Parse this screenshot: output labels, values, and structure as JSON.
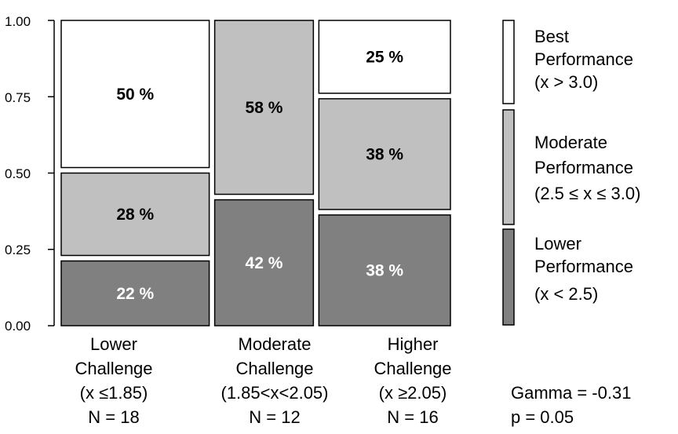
{
  "chart_data": {
    "type": "mosaic",
    "ylim": [
      0,
      1
    ],
    "y_ticks": [
      "0.00",
      "0.25",
      "0.50",
      "0.75",
      "1.00"
    ],
    "categories": [
      {
        "lines": [
          "Lower",
          "Challenge",
          "(x ≤1.85)",
          "N = 18"
        ],
        "n": 18,
        "segments": [
          {
            "level": "lower",
            "value": 0.22,
            "label": "22 %"
          },
          {
            "level": "moderate",
            "value": 0.28,
            "label": "28 %"
          },
          {
            "level": "best",
            "value": 0.5,
            "label": "50 %"
          }
        ]
      },
      {
        "lines": [
          "Moderate",
          "Challenge",
          "(1.85<x<2.05)",
          "N = 12"
        ],
        "n": 12,
        "segments": [
          {
            "level": "lower",
            "value": 0.42,
            "label": "42 %"
          },
          {
            "level": "moderate",
            "value": 0.58,
            "label": "58 %"
          },
          {
            "level": "best",
            "value": 0.0,
            "label": ""
          }
        ]
      },
      {
        "lines": [
          "Higher",
          "Challenge",
          "(x ≥2.05)",
          "N = 16"
        ],
        "n": 16,
        "segments": [
          {
            "level": "lower",
            "value": 0.38,
            "label": "38 %"
          },
          {
            "level": "moderate",
            "value": 0.38,
            "label": "38 %"
          },
          {
            "level": "best",
            "value": 0.25,
            "label": "25 %"
          }
        ]
      }
    ],
    "legend": [
      {
        "level": "best",
        "lines": [
          "Best",
          "Performance",
          "(x > 3.0)"
        ],
        "color": "#ffffff"
      },
      {
        "level": "moderate",
        "lines": [
          "Moderate",
          "Performance",
          "(2.5 ≤ x ≤ 3.0)"
        ],
        "color": "#c0c0c0"
      },
      {
        "level": "lower",
        "lines": [
          "Lower",
          "Performance",
          "(x < 2.5)"
        ],
        "color": "#808080"
      }
    ],
    "legend_position": "right",
    "label_colors": {
      "best": "#000000",
      "moderate": "#000000",
      "lower": "#ffffff"
    },
    "stats": [
      "Gamma = -0.31",
      "p =  0.05"
    ]
  }
}
